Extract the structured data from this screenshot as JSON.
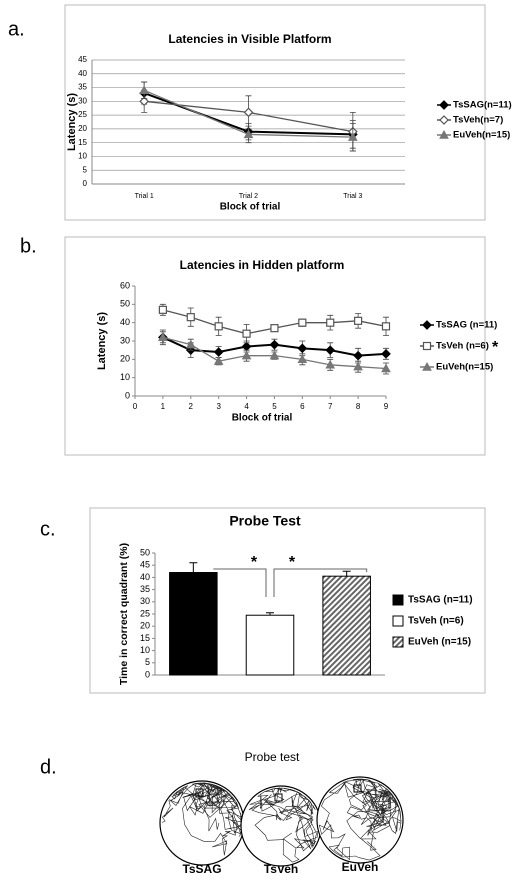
{
  "chart_data": [
    {
      "type": "line",
      "panel_label": "a.",
      "title": "Latencies in Visible Platform",
      "xlabel": "Block of trial",
      "ylabel": "Latency (s)",
      "categories": [
        "Trial 1",
        "Trial 2",
        "Trial 3"
      ],
      "ylim": [
        0,
        45
      ],
      "yticks": [
        0,
        5,
        10,
        15,
        20,
        25,
        30,
        35,
        40,
        45
      ],
      "grid": true,
      "series": [
        {
          "name": "TsSAG(n=11)",
          "color": "#000000",
          "marker": "diamond",
          "values": [
            33,
            19,
            18
          ],
          "errors": [
            4,
            3,
            5
          ]
        },
        {
          "name": "TsVeh(n=7)",
          "color": "#555555",
          "marker": "diamond-open",
          "values": [
            30,
            26,
            19
          ],
          "errors": [
            4,
            6,
            7
          ]
        },
        {
          "name": "EuVeh(n=15)",
          "color": "#777777",
          "marker": "triangle",
          "values": [
            34,
            18,
            17
          ],
          "errors": [
            3,
            3,
            5
          ]
        }
      ]
    },
    {
      "type": "line",
      "panel_label": "b.",
      "title": "Latencies in Hidden platform",
      "xlabel": "Block of trial",
      "ylabel": "Latency (s)",
      "x": [
        1,
        2,
        3,
        4,
        5,
        6,
        7,
        8,
        9
      ],
      "xlim": [
        0,
        9
      ],
      "xticks": [
        0,
        1,
        2,
        3,
        4,
        5,
        6,
        7,
        8,
        9
      ],
      "ylim": [
        0,
        60
      ],
      "yticks": [
        0,
        10,
        20,
        30,
        40,
        50,
        60
      ],
      "grid": false,
      "annotation": "*",
      "series": [
        {
          "name": "TsSAG (n=11)",
          "color": "#000000",
          "marker": "diamond",
          "values": [
            32,
            25,
            24,
            27,
            28,
            26,
            25,
            22,
            23
          ],
          "errors": [
            4,
            4,
            3,
            3,
            3,
            4,
            4,
            4,
            3
          ]
        },
        {
          "name": "TsVeh (n=6)",
          "color": "#555555",
          "marker": "square-open",
          "values": [
            47,
            43,
            38,
            34,
            37,
            40,
            40,
            41,
            38
          ],
          "errors": [
            3,
            5,
            5,
            5,
            1,
            2,
            4,
            4,
            5
          ]
        },
        {
          "name": "EuVeh(n=15)",
          "color": "#777777",
          "marker": "triangle",
          "values": [
            32,
            28,
            19,
            22,
            22,
            20,
            17,
            16,
            15
          ],
          "errors": [
            3,
            3,
            2,
            3,
            2,
            3,
            3,
            3,
            3
          ]
        }
      ]
    },
    {
      "type": "bar",
      "panel_label": "c.",
      "title": "Probe Test",
      "ylabel": "Time in correct quadrant (%)",
      "ylim": [
        0,
        50
      ],
      "yticks": [
        0,
        5,
        10,
        15,
        20,
        25,
        30,
        35,
        40,
        45,
        50
      ],
      "grid": false,
      "annotations": [
        "*",
        "*"
      ],
      "series": [
        {
          "name": "TsSAG (n=11)",
          "color": "#000000",
          "values": [
            42
          ],
          "errors": [
            4
          ]
        },
        {
          "name": "TsVeh (n=6)",
          "color": "#ffffff",
          "values": [
            24.5
          ],
          "errors": [
            1
          ]
        },
        {
          "name": "EuVeh (n=15)",
          "color": "#888888",
          "hatch": true,
          "values": [
            40.5
          ],
          "errors": [
            2
          ]
        }
      ]
    }
  ],
  "probe_image": {
    "panel_label": "d.",
    "title": "Probe test",
    "labels": [
      "TsSAG",
      "TsVeh",
      "EuVeh"
    ]
  }
}
